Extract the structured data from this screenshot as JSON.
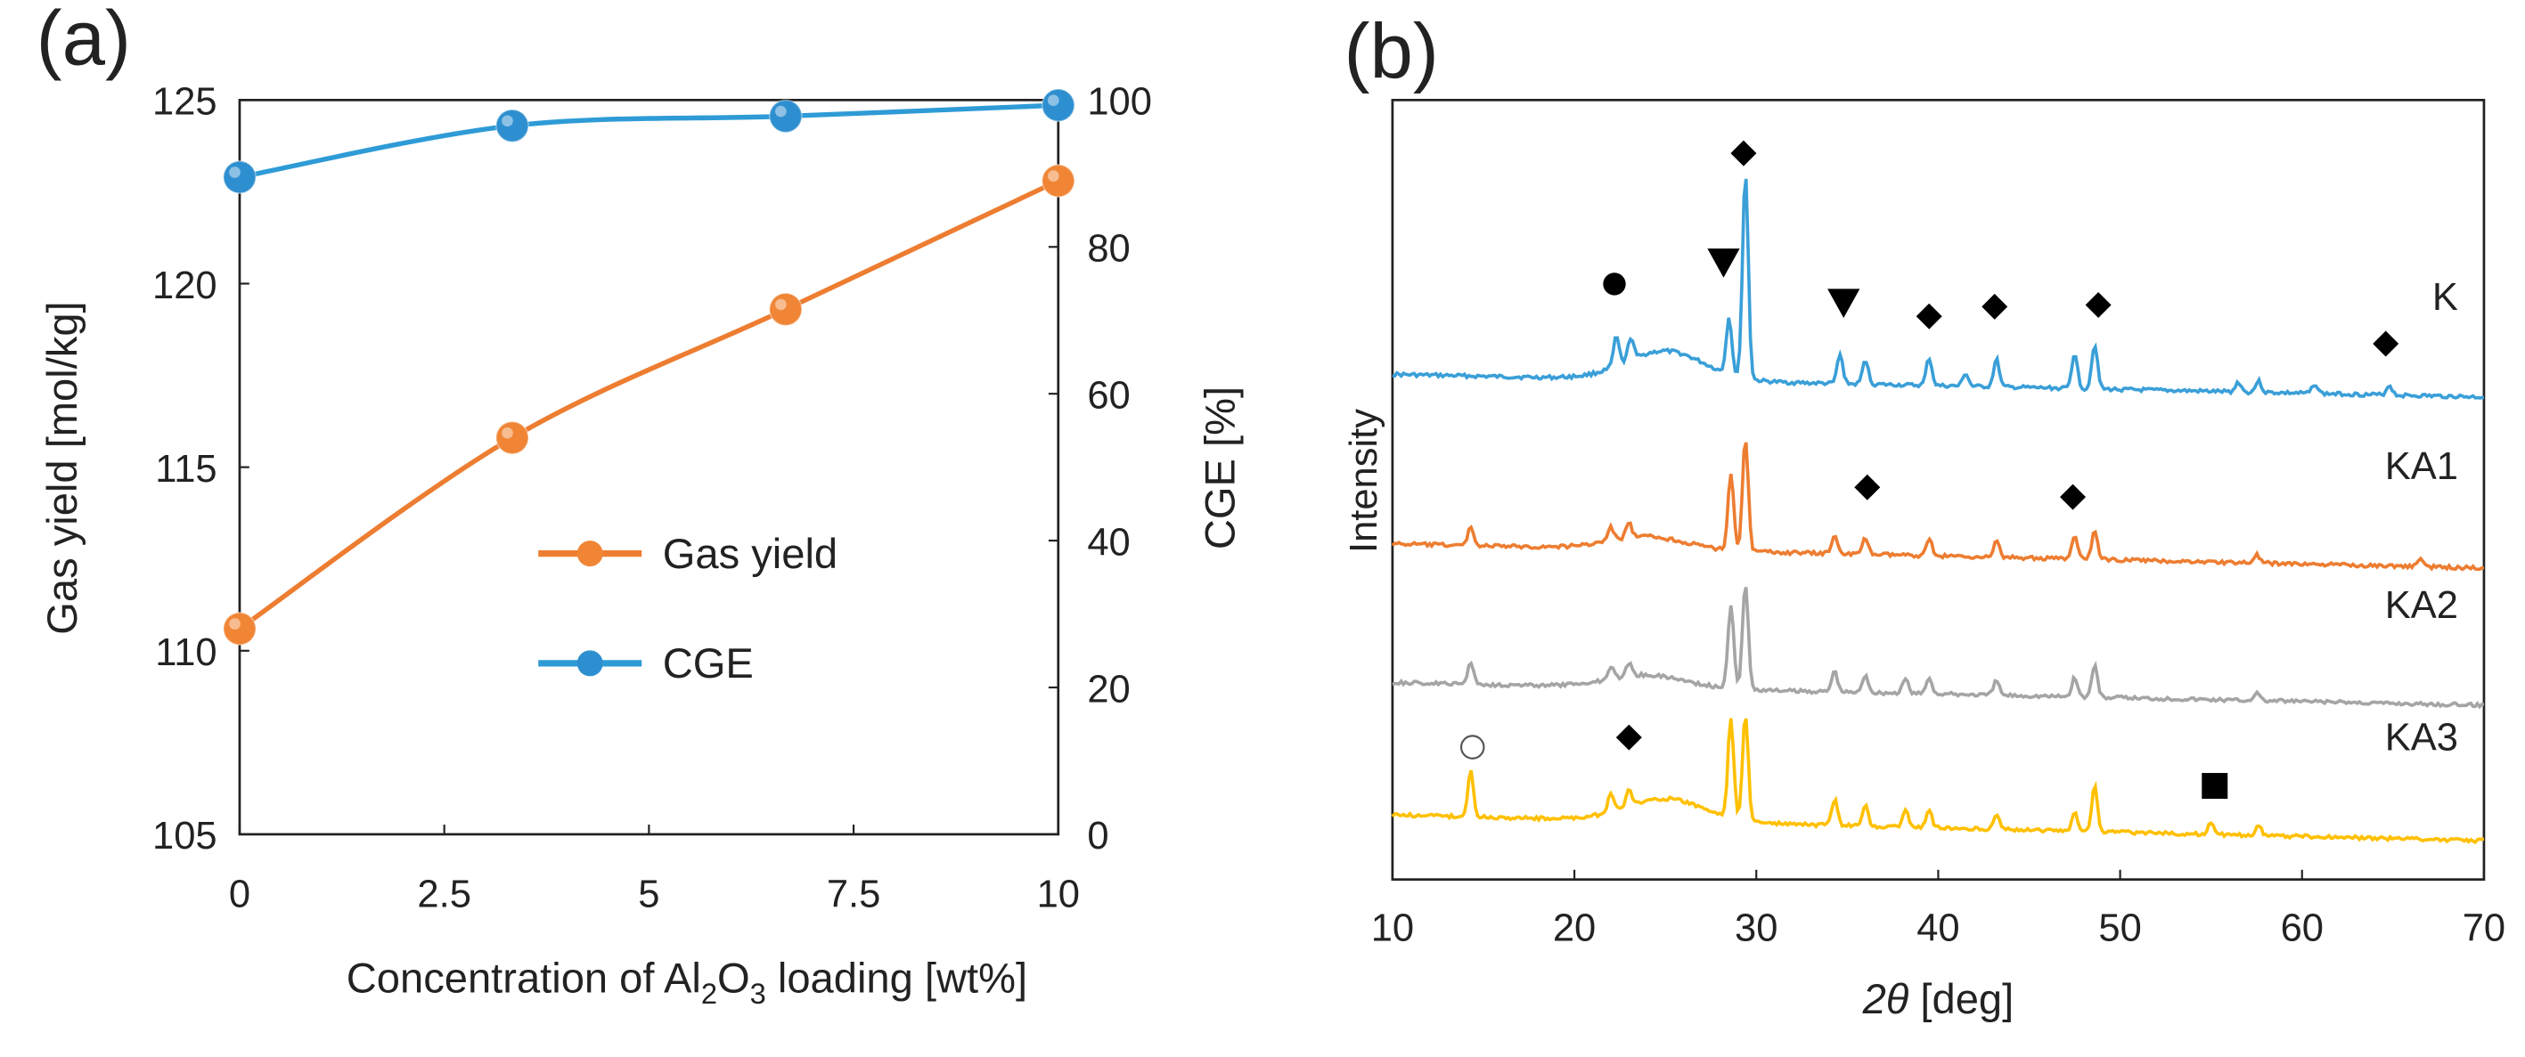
{
  "chart_data": [
    {
      "panel": "(a)",
      "type": "line",
      "x": [
        0,
        3.33,
        6.67,
        10
      ],
      "xlabel": "Concentration of Al",
      "xlabel_sub1": "2",
      "xlabel_mid": "O",
      "xlabel_sub2": "3",
      "xlabel_end": " loading [wt%]",
      "xlim": [
        0,
        10
      ],
      "xticks": [
        "0",
        "2.5",
        "5",
        "7.5",
        "10"
      ],
      "ylabel": "Gas yield [mol/kg]",
      "ylim": [
        105,
        125
      ],
      "yticks": [
        "105",
        "110",
        "115",
        "120",
        "125"
      ],
      "y2label": "CGE [%]",
      "y2lim": [
        0,
        100
      ],
      "y2ticks": [
        "0",
        "20",
        "40",
        "60",
        "80",
        "100"
      ],
      "legend_position": "center",
      "series": [
        {
          "name": "Gas yield",
          "axis": "left",
          "color": "#ED7D31",
          "marker": "#F08536",
          "values": [
            110.6,
            115.8,
            119.3,
            122.8
          ]
        },
        {
          "name": "CGE",
          "axis": "right",
          "color": "#2E9BD6",
          "marker": "#2E8FD0",
          "values": [
            89.5,
            96.5,
            97.8,
            99.3
          ]
        }
      ]
    },
    {
      "panel": "(b)",
      "type": "line",
      "xlabel_italic": "2θ",
      "xlabel_rest": " [deg]",
      "xlim": [
        10,
        70
      ],
      "xticks": [
        "10",
        "20",
        "30",
        "40",
        "50",
        "60",
        "70"
      ],
      "ylabel": "Intensity",
      "series": [
        {
          "name": "K",
          "color": "#3A9FD8",
          "baseline": 232,
          "slope": 14,
          "bump": 18,
          "bumpCenter": 25,
          "bumpWidth": 3,
          "peaks": [
            [
              22.3,
              18
            ],
            [
              23.1,
              14
            ],
            [
              28.5,
              35
            ],
            [
              29.4,
              128
            ],
            [
              34.6,
              18
            ],
            [
              36.0,
              15
            ],
            [
              39.5,
              17
            ],
            [
              41.5,
              8
            ],
            [
              43.2,
              17
            ],
            [
              47.5,
              22
            ],
            [
              48.6,
              28
            ],
            [
              56.5,
              6
            ],
            [
              57.6,
              7
            ],
            [
              60.7,
              6
            ],
            [
              64.8,
              6
            ]
          ]
        },
        {
          "name": "KA1",
          "color": "#ED7D31",
          "baseline": 337,
          "slope": 15,
          "bump": 8,
          "bumpCenter": 24,
          "bumpWidth": 3,
          "peaks": [
            [
              14.3,
              12
            ],
            [
              22.0,
              8
            ],
            [
              23.0,
              9
            ],
            [
              28.6,
              48
            ],
            [
              29.4,
              70
            ],
            [
              34.3,
              12
            ],
            [
              36.0,
              10
            ],
            [
              39.5,
              11
            ],
            [
              43.2,
              10
            ],
            [
              47.5,
              14
            ],
            [
              48.6,
              18
            ],
            [
              57.5,
              5
            ],
            [
              66.5,
              5
            ]
          ]
        },
        {
          "name": "KA2",
          "color": "#A5A5A5",
          "baseline": 423,
          "slope": 14,
          "bump": 8,
          "bumpCenter": 24,
          "bumpWidth": 3,
          "peaks": [
            [
              14.3,
              14
            ],
            [
              22.0,
              8
            ],
            [
              23.0,
              8
            ],
            [
              28.6,
              52
            ],
            [
              29.4,
              66
            ],
            [
              34.3,
              13
            ],
            [
              36.0,
              11
            ],
            [
              38.2,
              9
            ],
            [
              39.5,
              10
            ],
            [
              43.2,
              9
            ],
            [
              47.5,
              12
            ],
            [
              48.6,
              20
            ],
            [
              57.5,
              5
            ]
          ]
        },
        {
          "name": "KA3",
          "color": "#FFC000",
          "baseline": 505,
          "slope": 16,
          "bump": 14,
          "bumpCenter": 25,
          "bumpWidth": 3,
          "peaks": [
            [
              14.3,
              28
            ],
            [
              22.0,
              12
            ],
            [
              23.0,
              10
            ],
            [
              28.6,
              62
            ],
            [
              29.4,
              66
            ],
            [
              34.3,
              16
            ],
            [
              36.0,
              13
            ],
            [
              38.2,
              11
            ],
            [
              39.5,
              11
            ],
            [
              43.2,
              10
            ],
            [
              47.5,
              12
            ],
            [
              48.6,
              28
            ],
            [
              55.0,
              7
            ],
            [
              57.6,
              7
            ]
          ]
        }
      ],
      "markers": [
        {
          "shape": "circle",
          "x": 22.2,
          "y": 176
        },
        {
          "shape": "triangle-down",
          "x": 28.2,
          "y": 163
        },
        {
          "shape": "diamond",
          "x": 29.3,
          "y": 95
        },
        {
          "shape": "triangle-down",
          "x": 34.8,
          "y": 188
        },
        {
          "shape": "diamond",
          "x": 39.5,
          "y": 196
        },
        {
          "shape": "diamond",
          "x": 43.1,
          "y": 190
        },
        {
          "shape": "diamond",
          "x": 48.8,
          "y": 189
        },
        {
          "shape": "diamond",
          "x": 64.6,
          "y": 213
        },
        {
          "shape": "diamond",
          "x": 36.1,
          "y": 302
        },
        {
          "shape": "diamond",
          "x": 47.4,
          "y": 308
        },
        {
          "shape": "open-circle",
          "x": 14.4,
          "y": 463
        },
        {
          "shape": "diamond",
          "x": 23.0,
          "y": 457
        },
        {
          "shape": "square",
          "x": 55.2,
          "y": 487
        }
      ]
    }
  ]
}
